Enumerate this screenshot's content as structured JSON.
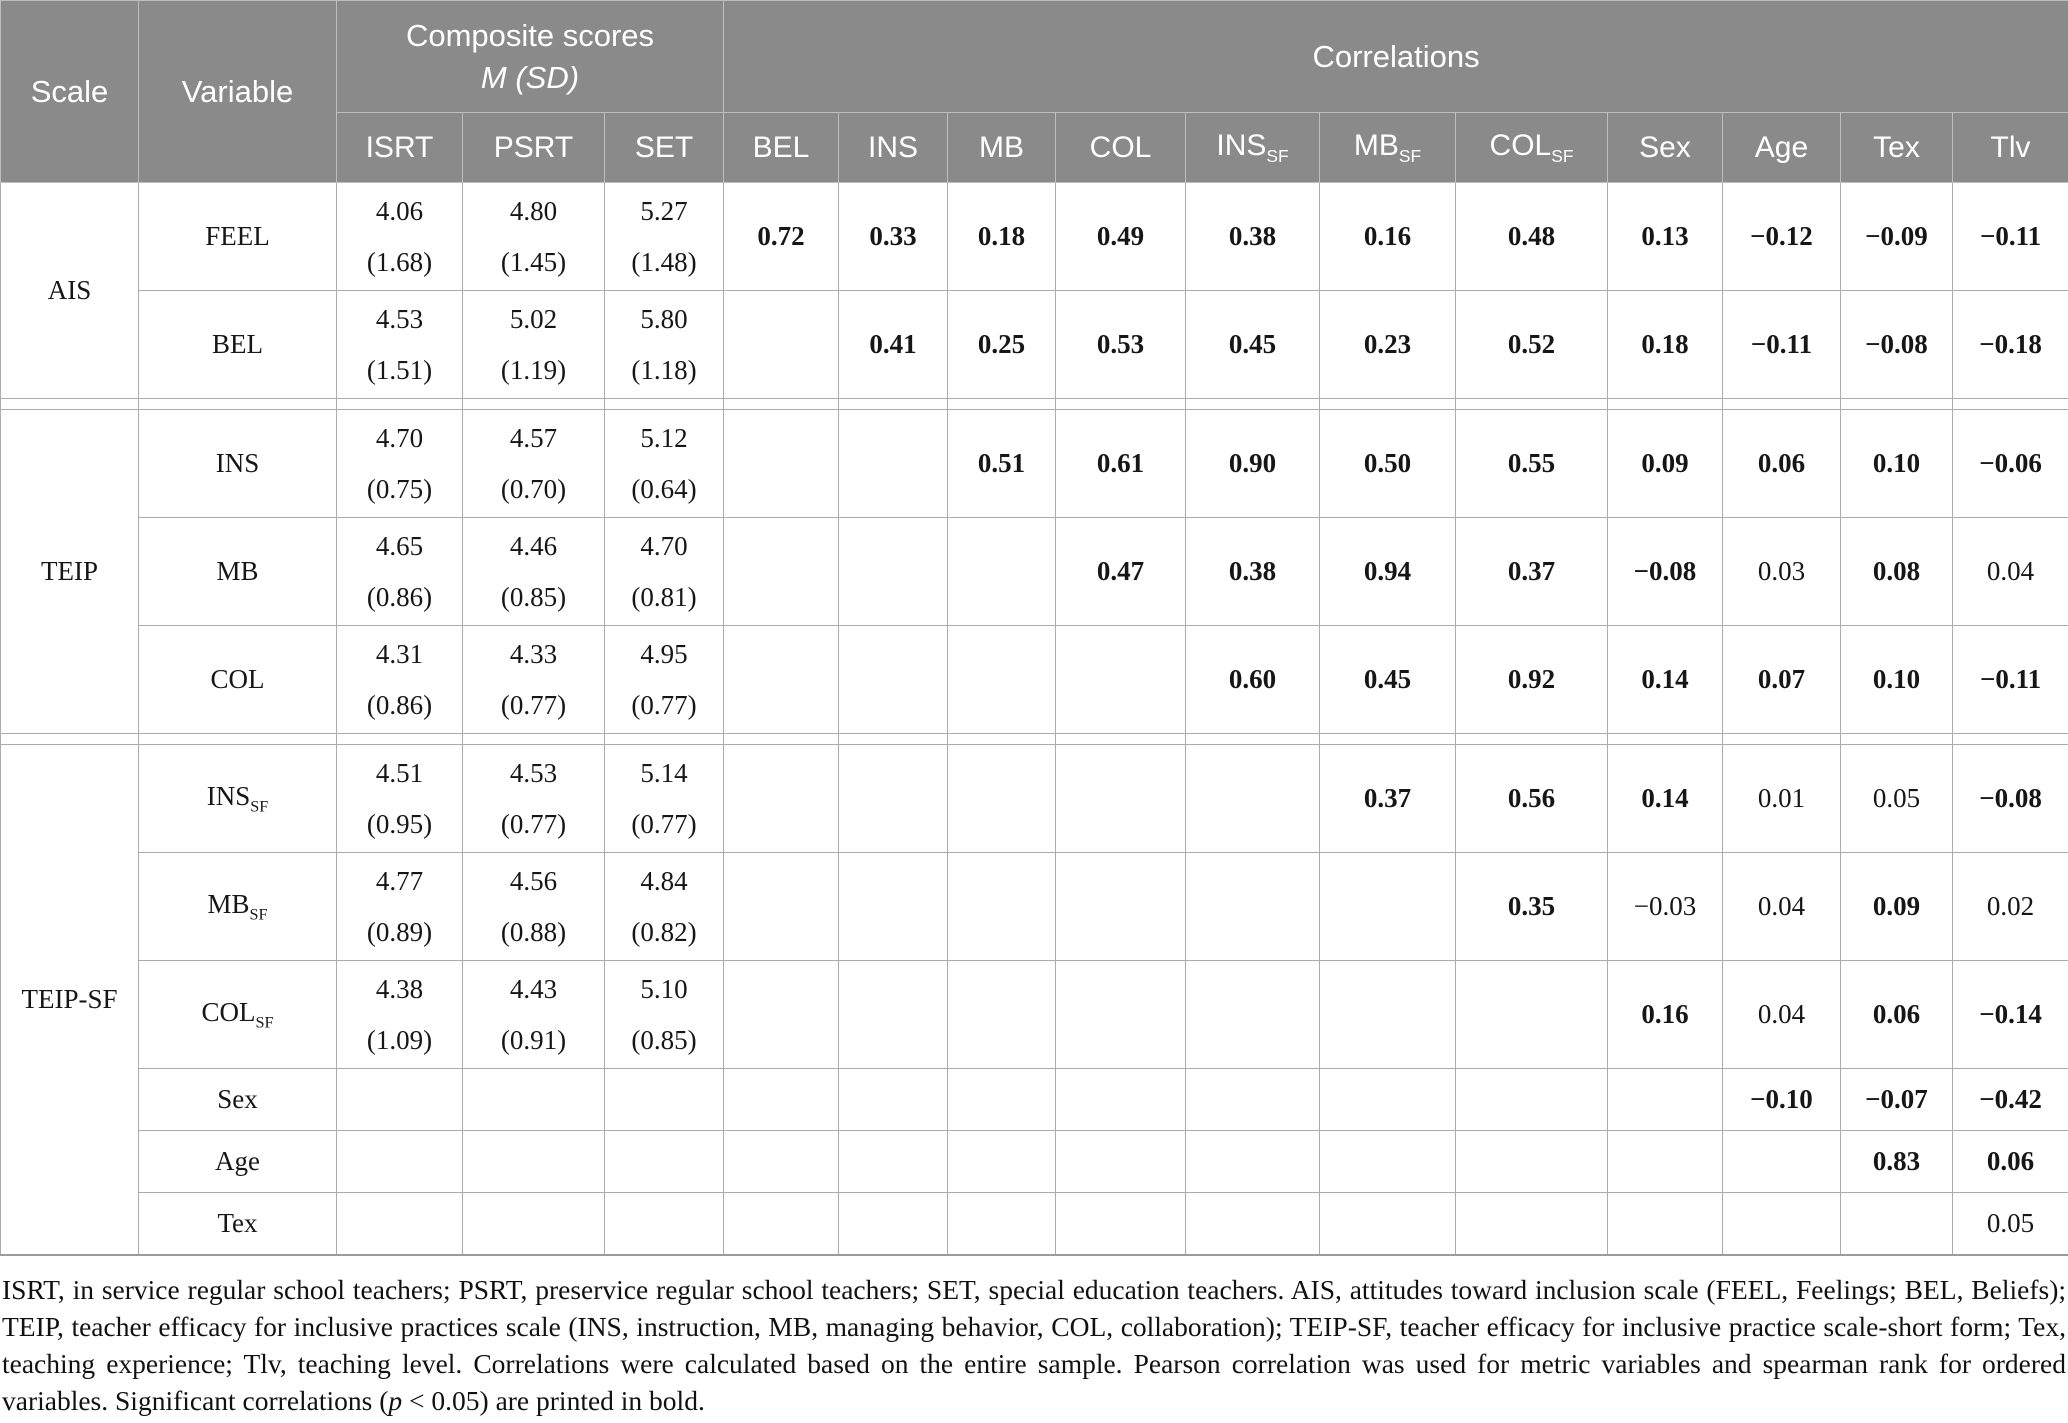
{
  "table": {
    "header": {
      "scale": "Scale",
      "variable": "Variable",
      "composite_title": "Composite scores",
      "composite_subtitle": "M (SD)",
      "correlations_title": "Correlations",
      "composite_cols": [
        "ISRT",
        "PSRT",
        "SET"
      ],
      "correlation_cols": [
        {
          "label": "BEL",
          "sub": ""
        },
        {
          "label": "INS",
          "sub": ""
        },
        {
          "label": "MB",
          "sub": ""
        },
        {
          "label": "COL",
          "sub": ""
        },
        {
          "label": "INS",
          "sub": "SF"
        },
        {
          "label": "MB",
          "sub": "SF"
        },
        {
          "label": "COL",
          "sub": "SF"
        },
        {
          "label": "Sex",
          "sub": ""
        },
        {
          "label": "Age",
          "sub": ""
        },
        {
          "label": "Tex",
          "sub": ""
        },
        {
          "label": "Tlv",
          "sub": ""
        }
      ]
    },
    "groups": [
      {
        "scale": "AIS",
        "rows": [
          {
            "variable": {
              "label": "FEEL",
              "sub": ""
            },
            "composite": [
              {
                "m": "4.06",
                "sd": "(1.68)"
              },
              {
                "m": "4.80",
                "sd": "(1.45)"
              },
              {
                "m": "5.27",
                "sd": "(1.48)"
              }
            ],
            "correlations": [
              {
                "v": "0.72",
                "b": true
              },
              {
                "v": "0.33",
                "b": true
              },
              {
                "v": "0.18",
                "b": true
              },
              {
                "v": "0.49",
                "b": true
              },
              {
                "v": "0.38",
                "b": true
              },
              {
                "v": "0.16",
                "b": true
              },
              {
                "v": "0.48",
                "b": true
              },
              {
                "v": "0.13",
                "b": true
              },
              {
                "v": "−0.12",
                "b": true
              },
              {
                "v": "−0.09",
                "b": true
              },
              {
                "v": "−0.11",
                "b": true
              }
            ]
          },
          {
            "variable": {
              "label": "BEL",
              "sub": ""
            },
            "composite": [
              {
                "m": "4.53",
                "sd": "(1.51)"
              },
              {
                "m": "5.02",
                "sd": "(1.19)"
              },
              {
                "m": "5.80",
                "sd": "(1.18)"
              }
            ],
            "correlations": [
              {
                "v": "",
                "b": false
              },
              {
                "v": "0.41",
                "b": true
              },
              {
                "v": "0.25",
                "b": true
              },
              {
                "v": "0.53",
                "b": true
              },
              {
                "v": "0.45",
                "b": true
              },
              {
                "v": "0.23",
                "b": true
              },
              {
                "v": "0.52",
                "b": true
              },
              {
                "v": "0.18",
                "b": true
              },
              {
                "v": "−0.11",
                "b": true
              },
              {
                "v": "−0.08",
                "b": true
              },
              {
                "v": "−0.18",
                "b": true
              }
            ]
          }
        ]
      },
      {
        "scale": "TEIP",
        "rows": [
          {
            "variable": {
              "label": "INS",
              "sub": ""
            },
            "composite": [
              {
                "m": "4.70",
                "sd": "(0.75)"
              },
              {
                "m": "4.57",
                "sd": "(0.70)"
              },
              {
                "m": "5.12",
                "sd": "(0.64)"
              }
            ],
            "correlations": [
              {
                "v": "",
                "b": false
              },
              {
                "v": "",
                "b": false
              },
              {
                "v": "0.51",
                "b": true
              },
              {
                "v": "0.61",
                "b": true
              },
              {
                "v": "0.90",
                "b": true
              },
              {
                "v": "0.50",
                "b": true
              },
              {
                "v": "0.55",
                "b": true
              },
              {
                "v": "0.09",
                "b": true
              },
              {
                "v": "0.06",
                "b": true
              },
              {
                "v": "0.10",
                "b": true
              },
              {
                "v": "−0.06",
                "b": true
              }
            ]
          },
          {
            "variable": {
              "label": "MB",
              "sub": ""
            },
            "composite": [
              {
                "m": "4.65",
                "sd": "(0.86)"
              },
              {
                "m": "4.46",
                "sd": "(0.85)"
              },
              {
                "m": "4.70",
                "sd": "(0.81)"
              }
            ],
            "correlations": [
              {
                "v": "",
                "b": false
              },
              {
                "v": "",
                "b": false
              },
              {
                "v": "",
                "b": false
              },
              {
                "v": "0.47",
                "b": true
              },
              {
                "v": "0.38",
                "b": true
              },
              {
                "v": "0.94",
                "b": true
              },
              {
                "v": "0.37",
                "b": true
              },
              {
                "v": "−0.08",
                "b": true
              },
              {
                "v": "0.03",
                "b": false
              },
              {
                "v": "0.08",
                "b": true
              },
              {
                "v": "0.04",
                "b": false
              }
            ]
          },
          {
            "variable": {
              "label": "COL",
              "sub": ""
            },
            "composite": [
              {
                "m": "4.31",
                "sd": "(0.86)"
              },
              {
                "m": "4.33",
                "sd": "(0.77)"
              },
              {
                "m": "4.95",
                "sd": "(0.77)"
              }
            ],
            "correlations": [
              {
                "v": "",
                "b": false
              },
              {
                "v": "",
                "b": false
              },
              {
                "v": "",
                "b": false
              },
              {
                "v": "",
                "b": false
              },
              {
                "v": "0.60",
                "b": true
              },
              {
                "v": "0.45",
                "b": true
              },
              {
                "v": "0.92",
                "b": true
              },
              {
                "v": "0.14",
                "b": true
              },
              {
                "v": "0.07",
                "b": true
              },
              {
                "v": "0.10",
                "b": true
              },
              {
                "v": "−0.11",
                "b": true
              }
            ]
          }
        ]
      },
      {
        "scale": "TEIP-SF",
        "rows": [
          {
            "variable": {
              "label": "INS",
              "sub": "SF"
            },
            "composite": [
              {
                "m": "4.51",
                "sd": "(0.95)"
              },
              {
                "m": "4.53",
                "sd": "(0.77)"
              },
              {
                "m": "5.14",
                "sd": "(0.77)"
              }
            ],
            "correlations": [
              {
                "v": "",
                "b": false
              },
              {
                "v": "",
                "b": false
              },
              {
                "v": "",
                "b": false
              },
              {
                "v": "",
                "b": false
              },
              {
                "v": "",
                "b": false
              },
              {
                "v": "0.37",
                "b": true
              },
              {
                "v": "0.56",
                "b": true
              },
              {
                "v": "0.14",
                "b": true
              },
              {
                "v": "0.01",
                "b": false
              },
              {
                "v": "0.05",
                "b": false
              },
              {
                "v": "−0.08",
                "b": true
              }
            ]
          },
          {
            "variable": {
              "label": "MB",
              "sub": "SF"
            },
            "composite": [
              {
                "m": "4.77",
                "sd": "(0.89)"
              },
              {
                "m": "4.56",
                "sd": "(0.88)"
              },
              {
                "m": "4.84",
                "sd": "(0.82)"
              }
            ],
            "correlations": [
              {
                "v": "",
                "b": false
              },
              {
                "v": "",
                "b": false
              },
              {
                "v": "",
                "b": false
              },
              {
                "v": "",
                "b": false
              },
              {
                "v": "",
                "b": false
              },
              {
                "v": "",
                "b": false
              },
              {
                "v": "0.35",
                "b": true
              },
              {
                "v": "−0.03",
                "b": false
              },
              {
                "v": "0.04",
                "b": false
              },
              {
                "v": "0.09",
                "b": true
              },
              {
                "v": "0.02",
                "b": false
              }
            ]
          },
          {
            "variable": {
              "label": "COL",
              "sub": "SF"
            },
            "composite": [
              {
                "m": "4.38",
                "sd": "(1.09)"
              },
              {
                "m": "4.43",
                "sd": "(0.91)"
              },
              {
                "m": "5.10",
                "sd": "(0.85)"
              }
            ],
            "correlations": [
              {
                "v": "",
                "b": false
              },
              {
                "v": "",
                "b": false
              },
              {
                "v": "",
                "b": false
              },
              {
                "v": "",
                "b": false
              },
              {
                "v": "",
                "b": false
              },
              {
                "v": "",
                "b": false
              },
              {
                "v": "",
                "b": false
              },
              {
                "v": "0.16",
                "b": true
              },
              {
                "v": "0.04",
                "b": false
              },
              {
                "v": "0.06",
                "b": true
              },
              {
                "v": "−0.14",
                "b": true
              }
            ]
          },
          {
            "variable": {
              "label": "Sex",
              "sub": ""
            },
            "composite": [
              {
                "m": "",
                "sd": ""
              },
              {
                "m": "",
                "sd": ""
              },
              {
                "m": "",
                "sd": ""
              }
            ],
            "correlations": [
              {
                "v": "",
                "b": false
              },
              {
                "v": "",
                "b": false
              },
              {
                "v": "",
                "b": false
              },
              {
                "v": "",
                "b": false
              },
              {
                "v": "",
                "b": false
              },
              {
                "v": "",
                "b": false
              },
              {
                "v": "",
                "b": false
              },
              {
                "v": "",
                "b": false
              },
              {
                "v": "−0.10",
                "b": true
              },
              {
                "v": "−0.07",
                "b": true
              },
              {
                "v": "−0.42",
                "b": true
              }
            ]
          },
          {
            "variable": {
              "label": "Age",
              "sub": ""
            },
            "composite": [
              {
                "m": "",
                "sd": ""
              },
              {
                "m": "",
                "sd": ""
              },
              {
                "m": "",
                "sd": ""
              }
            ],
            "correlations": [
              {
                "v": "",
                "b": false
              },
              {
                "v": "",
                "b": false
              },
              {
                "v": "",
                "b": false
              },
              {
                "v": "",
                "b": false
              },
              {
                "v": "",
                "b": false
              },
              {
                "v": "",
                "b": false
              },
              {
                "v": "",
                "b": false
              },
              {
                "v": "",
                "b": false
              },
              {
                "v": "",
                "b": false
              },
              {
                "v": "0.83",
                "b": true
              },
              {
                "v": "0.06",
                "b": true
              }
            ]
          },
          {
            "variable": {
              "label": "Tex",
              "sub": ""
            },
            "composite": [
              {
                "m": "",
                "sd": ""
              },
              {
                "m": "",
                "sd": ""
              },
              {
                "m": "",
                "sd": ""
              }
            ],
            "correlations": [
              {
                "v": "",
                "b": false
              },
              {
                "v": "",
                "b": false
              },
              {
                "v": "",
                "b": false
              },
              {
                "v": "",
                "b": false
              },
              {
                "v": "",
                "b": false
              },
              {
                "v": "",
                "b": false
              },
              {
                "v": "",
                "b": false
              },
              {
                "v": "",
                "b": false
              },
              {
                "v": "",
                "b": false
              },
              {
                "v": "",
                "b": false
              },
              {
                "v": "0.05",
                "b": false
              }
            ]
          }
        ]
      }
    ]
  },
  "footnote": {
    "parts": [
      {
        "text": "ISRT, in service regular school teachers; PSRT, preservice regular school teachers; SET, special education teachers. AIS, attitudes toward inclusion scale (FEEL, Feelings; BEL, Beliefs); TEIP, teacher efficacy for inclusive practices scale (INS, instruction, MB, managing behavior, COL, collaboration); TEIP-SF, teacher efficacy for inclusive practice scale-short form; Tex, teaching experience; Tlv, teaching level. Correlations were calculated based on the entire sample. Pearson correlation was used for metric variables and spearman rank for ordered variables. Significant correlations (",
        "italic": false
      },
      {
        "text": "p",
        "italic": true
      },
      {
        "text": " < 0.05) are printed in bold.",
        "italic": false
      }
    ]
  },
  "colors": {
    "header_bg": "#8a8a8a",
    "header_text": "#ffffff",
    "body_border": "#ababab"
  }
}
